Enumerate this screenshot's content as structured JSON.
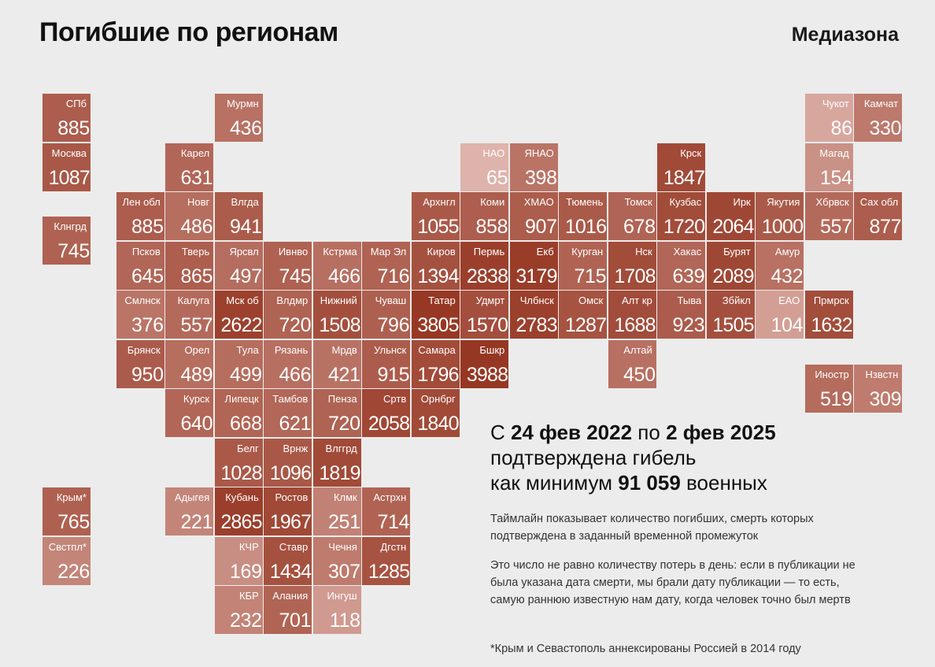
{
  "header": {
    "title": "Погибшие по регионам",
    "brand": "Медиазона"
  },
  "headline": {
    "prefix": "С ",
    "date_from": "24 фев 2022",
    "middle": " по ",
    "date_to": "2 фев 2025",
    "line2": "подтверждена гибель",
    "line3_prefix": "как минимум ",
    "total": "91 059",
    "line3_suffix": " военных"
  },
  "notes": {
    "timeline": "Таймлайн показывает количество погибших, смерть которых подтверждена в заданный временной промежуток",
    "method": "Это число не равно количеству потерь в день: если в публикации не была указана дата смерти, мы брали дату публикации — то есть, самую раннюю известную нам дату, когда человек точно был мертв",
    "footnote": "*Крым и Севастополь аннексированы Россией в 2014 году"
  },
  "regions": [
    {
      "label": "СПб",
      "value": 885,
      "col": 0,
      "row": 0
    },
    {
      "label": "Москва",
      "value": 1087,
      "col": 0,
      "row": 1
    },
    {
      "label": "Клнгрд",
      "value": 745,
      "col": 0,
      "row": 2.5
    },
    {
      "label": "Крым*",
      "value": 765,
      "col": 0,
      "row": 8
    },
    {
      "label": "Свстпл*",
      "value": 226,
      "col": 0,
      "row": 9
    },
    {
      "label": "Мурмн",
      "value": 436,
      "col": 3.5,
      "row": 0
    },
    {
      "label": "Карел",
      "value": 631,
      "col": 2.5,
      "row": 1
    },
    {
      "label": "Лен обл",
      "value": 885,
      "col": 1.5,
      "row": 2
    },
    {
      "label": "Новг",
      "value": 486,
      "col": 2.5,
      "row": 2
    },
    {
      "label": "Влгда",
      "value": 941,
      "col": 3.5,
      "row": 2
    },
    {
      "label": "Псков",
      "value": 645,
      "col": 1.5,
      "row": 3
    },
    {
      "label": "Тверь",
      "value": 865,
      "col": 2.5,
      "row": 3
    },
    {
      "label": "Ярсвл",
      "value": 497,
      "col": 3.5,
      "row": 3
    },
    {
      "label": "Ивнво",
      "value": 745,
      "col": 4.5,
      "row": 3
    },
    {
      "label": "Кстрма",
      "value": 466,
      "col": 5.5,
      "row": 3
    },
    {
      "label": "Мар Эл",
      "value": 716,
      "col": 6.5,
      "row": 3
    },
    {
      "label": "Смлнск",
      "value": 376,
      "col": 1.5,
      "row": 4
    },
    {
      "label": "Калуга",
      "value": 557,
      "col": 2.5,
      "row": 4
    },
    {
      "label": "Мск об",
      "value": 2622,
      "col": 3.5,
      "row": 4
    },
    {
      "label": "Влдмр",
      "value": 720,
      "col": 4.5,
      "row": 4
    },
    {
      "label": "Нижний",
      "value": 1508,
      "col": 5.5,
      "row": 4
    },
    {
      "label": "Чуваш",
      "value": 796,
      "col": 6.5,
      "row": 4
    },
    {
      "label": "Брянск",
      "value": 950,
      "col": 1.5,
      "row": 5
    },
    {
      "label": "Орел",
      "value": 489,
      "col": 2.5,
      "row": 5
    },
    {
      "label": "Тула",
      "value": 499,
      "col": 3.5,
      "row": 5
    },
    {
      "label": "Рязань",
      "value": 466,
      "col": 4.5,
      "row": 5
    },
    {
      "label": "Мрдв",
      "value": 421,
      "col": 5.5,
      "row": 5
    },
    {
      "label": "Ульнск",
      "value": 915,
      "col": 6.5,
      "row": 5
    },
    {
      "label": "Курск",
      "value": 640,
      "col": 2.5,
      "row": 6
    },
    {
      "label": "Липецк",
      "value": 668,
      "col": 3.5,
      "row": 6
    },
    {
      "label": "Тамбов",
      "value": 621,
      "col": 4.5,
      "row": 6
    },
    {
      "label": "Пенза",
      "value": 720,
      "col": 5.5,
      "row": 6
    },
    {
      "label": "Сртв",
      "value": 2058,
      "col": 6.5,
      "row": 6
    },
    {
      "label": "Орнбрг",
      "value": 1840,
      "col": 7.5,
      "row": 6
    },
    {
      "label": "Белг",
      "value": 1028,
      "col": 3.5,
      "row": 7
    },
    {
      "label": "Врнж",
      "value": 1096,
      "col": 4.5,
      "row": 7
    },
    {
      "label": "Влггрд",
      "value": 1819,
      "col": 5.5,
      "row": 7
    },
    {
      "label": "Адыгея",
      "value": 221,
      "col": 2.5,
      "row": 8
    },
    {
      "label": "Кубань",
      "value": 2865,
      "col": 3.5,
      "row": 8
    },
    {
      "label": "Ростов",
      "value": 1967,
      "col": 4.5,
      "row": 8
    },
    {
      "label": "Клмк",
      "value": 251,
      "col": 5.5,
      "row": 8
    },
    {
      "label": "Астрхн",
      "value": 714,
      "col": 6.5,
      "row": 8
    },
    {
      "label": "КЧР",
      "value": 169,
      "col": 3.5,
      "row": 9
    },
    {
      "label": "Ставр",
      "value": 1434,
      "col": 4.5,
      "row": 9
    },
    {
      "label": "Чечня",
      "value": 307,
      "col": 5.5,
      "row": 9
    },
    {
      "label": "Дгстн",
      "value": 1285,
      "col": 6.5,
      "row": 9
    },
    {
      "label": "КБР",
      "value": 232,
      "col": 3.5,
      "row": 10
    },
    {
      "label": "Алания",
      "value": 701,
      "col": 4.5,
      "row": 10
    },
    {
      "label": "Ингуш",
      "value": 118,
      "col": 5.5,
      "row": 10
    },
    {
      "label": "НАО",
      "value": 65,
      "col": 8.5,
      "row": 1
    },
    {
      "label": "ЯНАО",
      "value": 398,
      "col": 9.5,
      "row": 1
    },
    {
      "label": "Крск",
      "value": 1847,
      "col": 12.5,
      "row": 1
    },
    {
      "label": "Архнгл",
      "value": 1055,
      "col": 7.5,
      "row": 2
    },
    {
      "label": "Коми",
      "value": 858,
      "col": 8.5,
      "row": 2
    },
    {
      "label": "ХМАО",
      "value": 907,
      "col": 9.5,
      "row": 2
    },
    {
      "label": "Тюмень",
      "value": 1016,
      "col": 10.5,
      "row": 2
    },
    {
      "label": "Томск",
      "value": 678,
      "col": 11.5,
      "row": 2
    },
    {
      "label": "Кузбас",
      "value": 1720,
      "col": 12.5,
      "row": 2
    },
    {
      "label": "Ирк",
      "value": 2064,
      "col": 13.5,
      "row": 2
    },
    {
      "label": "Якутия",
      "value": 1000,
      "col": 14.5,
      "row": 2
    },
    {
      "label": "Киров",
      "value": 1394,
      "col": 7.5,
      "row": 3
    },
    {
      "label": "Пермь",
      "value": 2838,
      "col": 8.5,
      "row": 3
    },
    {
      "label": "Екб",
      "value": 3179,
      "col": 9.5,
      "row": 3
    },
    {
      "label": "Курган",
      "value": 715,
      "col": 10.5,
      "row": 3
    },
    {
      "label": "Нск",
      "value": 1708,
      "col": 11.5,
      "row": 3
    },
    {
      "label": "Хакас",
      "value": 639,
      "col": 12.5,
      "row": 3
    },
    {
      "label": "Бурят",
      "value": 2089,
      "col": 13.5,
      "row": 3
    },
    {
      "label": "Амур",
      "value": 432,
      "col": 14.5,
      "row": 3
    },
    {
      "label": "Татар",
      "value": 3805,
      "col": 7.5,
      "row": 4
    },
    {
      "label": "Удмрт",
      "value": 1570,
      "col": 8.5,
      "row": 4
    },
    {
      "label": "Члбнск",
      "value": 2783,
      "col": 9.5,
      "row": 4
    },
    {
      "label": "Омск",
      "value": 1287,
      "col": 10.5,
      "row": 4
    },
    {
      "label": "Алт кр",
      "value": 1688,
      "col": 11.5,
      "row": 4
    },
    {
      "label": "Тыва",
      "value": 923,
      "col": 12.5,
      "row": 4
    },
    {
      "label": "Збйкл",
      "value": 1505,
      "col": 13.5,
      "row": 4
    },
    {
      "label": "ЕАО",
      "value": 104,
      "col": 14.5,
      "row": 4
    },
    {
      "label": "Прмрск",
      "value": 1632,
      "col": 15.5,
      "row": 4
    },
    {
      "label": "Самара",
      "value": 1796,
      "col": 7.5,
      "row": 5
    },
    {
      "label": "Бшкр",
      "value": 3988,
      "col": 8.5,
      "row": 5
    },
    {
      "label": "Алтай",
      "value": 450,
      "col": 11.5,
      "row": 5
    },
    {
      "label": "Чукот",
      "value": 86,
      "col": 15.5,
      "row": 0
    },
    {
      "label": "Камчат",
      "value": 330,
      "col": 16.5,
      "row": 0
    },
    {
      "label": "Магад",
      "value": 154,
      "col": 15.5,
      "row": 1
    },
    {
      "label": "Хбрвск",
      "value": 557,
      "col": 15.5,
      "row": 2
    },
    {
      "label": "Сах обл",
      "value": 877,
      "col": 16.5,
      "row": 2
    },
    {
      "label": "Иностр",
      "value": 519,
      "col": 15.5,
      "row": 5.5
    },
    {
      "label": "Нзвстн",
      "value": 309,
      "col": 16.5,
      "row": 5.5
    }
  ]
}
